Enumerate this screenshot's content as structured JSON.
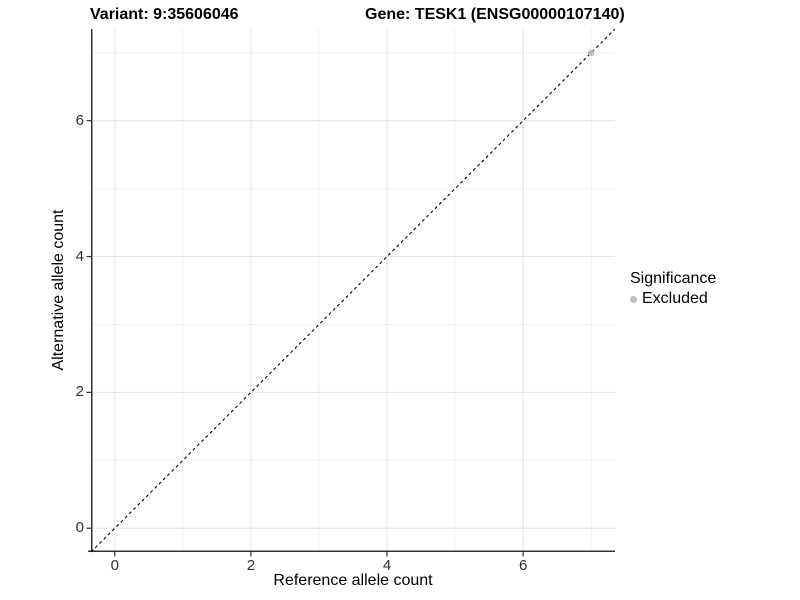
{
  "title": {
    "variant": "Variant: 9:35606046",
    "gene": "Gene: TESK1 (ENSG00000107140)"
  },
  "axes": {
    "x_label": "Reference allele count",
    "y_label": "Alternative allele count"
  },
  "legend": {
    "title": "Significance",
    "items": [
      {
        "label": "Excluded",
        "color": "#bdbdbd"
      }
    ]
  },
  "colors": {
    "grid_major": "#e4e4e4",
    "grid_minor": "#f2f2f2",
    "axis_line": "#333333",
    "tick_mark": "#333333",
    "reference_line": "#000000",
    "point_excluded": "#bdbdbd",
    "background": "#ffffff"
  },
  "chart_data": {
    "type": "scatter",
    "title": "Variant: 9:35606046    Gene: TESK1 (ENSG00000107140)",
    "xlabel": "Reference allele count",
    "ylabel": "Alternative allele count",
    "x": {
      "range": [
        -0.35,
        7.35
      ],
      "major_ticks": [
        0,
        2,
        4,
        6
      ],
      "minor_ticks": [
        1,
        3,
        5,
        7
      ]
    },
    "y": {
      "range": [
        -0.35,
        7.35
      ],
      "major_ticks": [
        0,
        2,
        4,
        6
      ],
      "minor_ticks": [
        1,
        3,
        5,
        7
      ]
    },
    "series": [
      {
        "name": "Excluded",
        "color": "#bdbdbd",
        "points": [
          {
            "x": 7,
            "y": 7
          }
        ]
      }
    ],
    "reference_line": {
      "kind": "identity_y_equals_x",
      "style": "dashed",
      "color": "#000000"
    },
    "grid": "major_and_minor",
    "legend_position": "right"
  }
}
